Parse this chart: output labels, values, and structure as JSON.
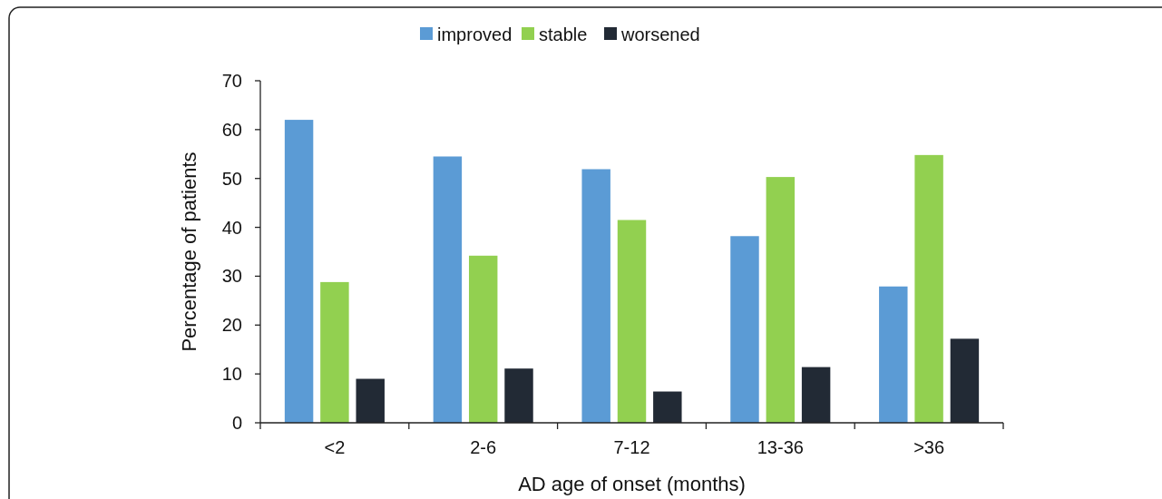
{
  "chart_data": {
    "type": "bar",
    "xlabel": "AD age of onset (months)",
    "ylabel": "Percentage of patients",
    "categories": [
      "<2",
      "2-6",
      "7-12",
      "13-36",
      ">36"
    ],
    "series": [
      {
        "name": "improved",
        "color": "#5b9bd5",
        "values": [
          62.0,
          54.5,
          51.9,
          38.2,
          27.9
        ]
      },
      {
        "name": "stable",
        "color": "#92d050",
        "values": [
          28.8,
          34.2,
          41.5,
          50.3,
          54.8
        ]
      },
      {
        "name": "worsened",
        "color": "#222a35",
        "values": [
          9.0,
          11.1,
          6.4,
          11.4,
          17.2
        ]
      }
    ],
    "ylim": [
      0,
      70
    ],
    "yticks": [
      0,
      10,
      20,
      30,
      40,
      50,
      60,
      70
    ],
    "grid": false,
    "legend": "top"
  }
}
